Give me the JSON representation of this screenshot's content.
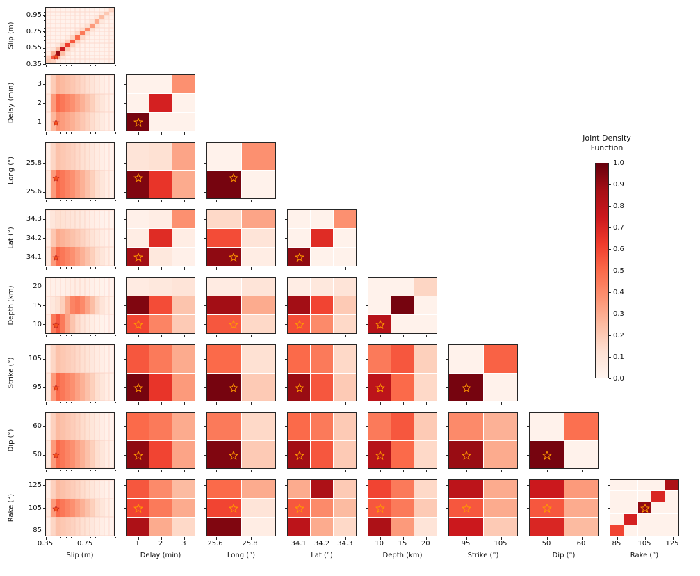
{
  "figure": {
    "background": "#ffffff",
    "colorbar": {
      "title_line1": "Joint Density",
      "title_line2": "Function",
      "tick_labels": [
        "1.0",
        "0.9",
        "0.8",
        "0.7",
        "0.6",
        "0.5",
        "0.4",
        "0.3",
        "0.2",
        "0.1",
        "0.0"
      ]
    }
  },
  "chart_data": {
    "type": "heatmap",
    "subtype": "corner-plot-pairwise-joint-density",
    "colorbar_title": "Joint Density Function",
    "colorbar_range": [
      0.0,
      1.0
    ],
    "colormap": {
      "name": "Reds",
      "stops": [
        [
          255,
          245,
          240
        ],
        [
          254,
          224,
          210
        ],
        [
          252,
          187,
          161
        ],
        [
          252,
          146,
          114
        ],
        [
          251,
          106,
          74
        ],
        [
          239,
          59,
          44
        ],
        [
          203,
          24,
          29
        ],
        [
          165,
          15,
          21
        ],
        [
          103,
          0,
          13
        ]
      ]
    },
    "marker": {
      "shape": "star",
      "fill": "#f4511e",
      "edge": "#b71c1c",
      "hollow_edge": "#ff9800"
    },
    "true_values": {
      "slip_m": 0.45,
      "delay_min": 1,
      "long_deg": 25.7,
      "lat_deg": 34.1,
      "depth_km": 10,
      "strike_deg": 95,
      "dip_deg": 50,
      "rake_deg": 105
    },
    "variables": [
      {
        "short": "slip",
        "label": "Slip (m)",
        "nbins": 14,
        "star_f": 0.143,
        "ticks": [
          [
            "0.35",
            0.0
          ],
          [
            "0.55",
            0.286
          ],
          [
            "0.75",
            0.571
          ],
          [
            "0.95",
            0.857
          ]
        ],
        "xticks": [
          [
            "0.35",
            0.0
          ],
          [
            "0.75",
            0.571
          ]
        ]
      },
      {
        "short": "delay",
        "label": "Delay (min)",
        "nbins": 3,
        "star_f": 0.167,
        "ticks": [
          [
            "1",
            0.167
          ],
          [
            "2",
            0.5
          ],
          [
            "3",
            0.833
          ]
        ]
      },
      {
        "short": "long",
        "label": "Long (°)",
        "nbins": 2,
        "star_f": 0.375,
        "ticks": [
          [
            "25.6",
            0.125
          ],
          [
            "25.8",
            0.625
          ]
        ]
      },
      {
        "short": "lat",
        "label": "Lat (°)",
        "nbins": 3,
        "star_f": 0.167,
        "ticks": [
          [
            "34.1",
            0.167
          ],
          [
            "34.2",
            0.5
          ],
          [
            "34.3",
            0.833
          ]
        ]
      },
      {
        "short": "depth",
        "label": "Depth (km)",
        "nbins": 3,
        "star_f": 0.167,
        "ticks": [
          [
            "10",
            0.167
          ],
          [
            "15",
            0.5
          ],
          [
            "20",
            0.833
          ]
        ]
      },
      {
        "short": "strike",
        "label": "Strike (°)",
        "nbins": 2,
        "star_f": 0.25,
        "ticks": [
          [
            "95",
            0.25
          ],
          [
            "105",
            0.75
          ]
        ]
      },
      {
        "short": "dip",
        "label": "Dip (°)",
        "nbins": 2,
        "star_f": 0.25,
        "ticks": [
          [
            "50",
            0.25
          ],
          [
            "60",
            0.75
          ]
        ]
      },
      {
        "short": "rake",
        "label": "Rake (°)",
        "nbins": 5,
        "star_f": 0.5,
        "ticks": [
          [
            "85",
            0.1
          ],
          [
            "105",
            0.5
          ],
          [
            "125",
            0.9
          ]
        ]
      }
    ],
    "slip_x_profile": [
      0.08,
      0.35,
      0.5,
      0.46,
      0.42,
      0.38,
      0.33,
      0.28,
      0.23,
      0.18,
      0.13,
      0.09,
      0.05,
      0.02
    ],
    "panels": [
      {
        "r": 0,
        "c": 0,
        "kind": "diag",
        "name": "slip-vs-slip",
        "profile": [
          0.2,
          0.55,
          0.9,
          0.75,
          0.62,
          0.55,
          0.5,
          0.45,
          0.4,
          0.35,
          0.3,
          0.25,
          0.2,
          0.15
        ]
      },
      {
        "r": 1,
        "c": 0,
        "kind": "smear",
        "name": "delay-vs-slip",
        "y_weights": [
          0.55,
          1.0,
          0.75
        ]
      },
      {
        "r": 1,
        "c": 1,
        "kind": "grid",
        "name": "delay-vs-delay",
        "grid": [
          [
            0.02,
            0.02,
            0.38
          ],
          [
            0.02,
            0.72,
            0.02
          ],
          [
            0.97,
            0.02,
            0.02
          ]
        ]
      },
      {
        "r": 2,
        "c": 0,
        "kind": "smear",
        "name": "long-vs-slip",
        "y_weights": [
          0.45,
          1.0
        ]
      },
      {
        "r": 2,
        "c": 1,
        "kind": "grid",
        "name": "long-vs-delay",
        "grid": [
          [
            0.1,
            0.12,
            0.32
          ],
          [
            0.95,
            0.65,
            0.3
          ]
        ]
      },
      {
        "r": 2,
        "c": 2,
        "kind": "grid",
        "name": "long-vs-long",
        "grid": [
          [
            0.02,
            0.38
          ],
          [
            0.97,
            0.02
          ]
        ]
      },
      {
        "r": 3,
        "c": 0,
        "kind": "smear",
        "name": "lat-vs-slip",
        "y_weights": [
          0.25,
          0.6,
          1.0
        ]
      },
      {
        "r": 3,
        "c": 1,
        "kind": "grid",
        "name": "lat-vs-delay",
        "grid": [
          [
            0.03,
            0.05,
            0.38
          ],
          [
            0.05,
            0.68,
            0.05
          ],
          [
            0.88,
            0.08,
            0.03
          ]
        ]
      },
      {
        "r": 3,
        "c": 2,
        "kind": "grid",
        "name": "lat-vs-long",
        "grid": [
          [
            0.15,
            0.32
          ],
          [
            0.58,
            0.1
          ],
          [
            0.92,
            0.05
          ]
        ]
      },
      {
        "r": 3,
        "c": 3,
        "kind": "grid",
        "name": "lat-vs-lat",
        "grid": [
          [
            0.02,
            0.02,
            0.38
          ],
          [
            0.02,
            0.68,
            0.02
          ],
          [
            0.92,
            0.02,
            0.02
          ]
        ]
      },
      {
        "r": 4,
        "c": 0,
        "kind": "grid",
        "name": "depth-vs-slip",
        "grid": [
          [
            0.02,
            0.03,
            0.03,
            0.03,
            0.04,
            0.05,
            0.05,
            0.05,
            0.04,
            0.03,
            0.02,
            0.02,
            0.01,
            0.01
          ],
          [
            0.03,
            0.08,
            0.12,
            0.18,
            0.3,
            0.42,
            0.45,
            0.4,
            0.32,
            0.24,
            0.16,
            0.1,
            0.05,
            0.02
          ],
          [
            0.06,
            0.45,
            0.55,
            0.45,
            0.32,
            0.22,
            0.15,
            0.1,
            0.07,
            0.05,
            0.03,
            0.02,
            0.01,
            0.01
          ]
        ]
      },
      {
        "r": 4,
        "c": 1,
        "kind": "grid",
        "name": "depth-vs-delay",
        "grid": [
          [
            0.06,
            0.08,
            0.1
          ],
          [
            0.95,
            0.58,
            0.22
          ],
          [
            0.6,
            0.42,
            0.2
          ]
        ]
      },
      {
        "r": 4,
        "c": 2,
        "kind": "grid",
        "name": "depth-vs-long",
        "grid": [
          [
            0.06,
            0.1
          ],
          [
            0.88,
            0.3
          ],
          [
            0.55,
            0.15
          ]
        ]
      },
      {
        "r": 4,
        "c": 3,
        "kind": "grid",
        "name": "depth-vs-lat",
        "grid": [
          [
            0.05,
            0.08,
            0.1
          ],
          [
            0.88,
            0.6,
            0.2
          ],
          [
            0.58,
            0.4,
            0.15
          ]
        ]
      },
      {
        "r": 4,
        "c": 4,
        "kind": "grid",
        "name": "depth-vs-depth",
        "grid": [
          [
            0.02,
            0.02,
            0.16
          ],
          [
            0.02,
            0.97,
            0.02
          ],
          [
            0.82,
            0.02,
            0.02
          ]
        ]
      },
      {
        "r": 5,
        "c": 0,
        "kind": "smear",
        "name": "strike-vs-slip",
        "y_weights": [
          0.45,
          1.0
        ]
      },
      {
        "r": 5,
        "c": 1,
        "kind": "grid",
        "name": "strike-vs-delay",
        "grid": [
          [
            0.55,
            0.45,
            0.3
          ],
          [
            0.97,
            0.65,
            0.35
          ]
        ]
      },
      {
        "r": 5,
        "c": 2,
        "kind": "grid",
        "name": "strike-vs-long",
        "grid": [
          [
            0.5,
            0.12
          ],
          [
            0.97,
            0.2
          ]
        ]
      },
      {
        "r": 5,
        "c": 3,
        "kind": "grid",
        "name": "strike-vs-lat",
        "grid": [
          [
            0.5,
            0.45,
            0.15
          ],
          [
            0.9,
            0.55,
            0.2
          ]
        ]
      },
      {
        "r": 5,
        "c": 4,
        "kind": "grid",
        "name": "strike-vs-depth",
        "grid": [
          [
            0.45,
            0.55,
            0.18
          ],
          [
            0.8,
            0.5,
            0.15
          ]
        ]
      },
      {
        "r": 5,
        "c": 5,
        "kind": "grid",
        "name": "strike-vs-strike",
        "grid": [
          [
            0.02,
            0.52
          ],
          [
            0.97,
            0.02
          ]
        ]
      },
      {
        "r": 6,
        "c": 0,
        "kind": "smear",
        "name": "dip-vs-slip",
        "y_weights": [
          0.5,
          1.0
        ]
      },
      {
        "r": 6,
        "c": 1,
        "kind": "grid",
        "name": "dip-vs-delay",
        "grid": [
          [
            0.5,
            0.45,
            0.3
          ],
          [
            0.92,
            0.6,
            0.32
          ]
        ]
      },
      {
        "r": 6,
        "c": 2,
        "kind": "grid",
        "name": "dip-vs-long",
        "grid": [
          [
            0.45,
            0.15
          ],
          [
            0.95,
            0.2
          ]
        ]
      },
      {
        "r": 6,
        "c": 3,
        "kind": "grid",
        "name": "dip-vs-lat",
        "grid": [
          [
            0.5,
            0.45,
            0.2
          ],
          [
            0.88,
            0.55,
            0.2
          ]
        ]
      },
      {
        "r": 6,
        "c": 4,
        "kind": "grid",
        "name": "dip-vs-depth",
        "grid": [
          [
            0.45,
            0.55,
            0.2
          ],
          [
            0.82,
            0.5,
            0.15
          ]
        ]
      },
      {
        "r": 6,
        "c": 5,
        "kind": "grid",
        "name": "dip-vs-strike",
        "grid": [
          [
            0.4,
            0.28
          ],
          [
            0.9,
            0.3
          ]
        ]
      },
      {
        "r": 6,
        "c": 6,
        "kind": "grid",
        "name": "dip-vs-dip",
        "grid": [
          [
            0.02,
            0.48
          ],
          [
            0.97,
            0.02
          ]
        ]
      },
      {
        "r": 7,
        "c": 0,
        "kind": "smear",
        "name": "rake-vs-slip",
        "y_weights": [
          0.5,
          1.0,
          0.45
        ]
      },
      {
        "r": 7,
        "c": 1,
        "kind": "grid",
        "name": "rake-vs-delay",
        "grid": [
          [
            0.55,
            0.4,
            0.25
          ],
          [
            0.6,
            0.45,
            0.3
          ],
          [
            0.85,
            0.3,
            0.15
          ]
        ]
      },
      {
        "r": 7,
        "c": 2,
        "kind": "grid",
        "name": "rake-vs-long",
        "grid": [
          [
            0.5,
            0.3
          ],
          [
            0.6,
            0.1
          ],
          [
            0.95,
            0.05
          ]
        ]
      },
      {
        "r": 7,
        "c": 3,
        "kind": "grid",
        "name": "rake-vs-lat",
        "grid": [
          [
            0.3,
            0.85,
            0.2
          ],
          [
            0.55,
            0.4,
            0.25
          ],
          [
            0.8,
            0.3,
            0.15
          ]
        ]
      },
      {
        "r": 7,
        "c": 4,
        "kind": "grid",
        "name": "rake-vs-depth",
        "grid": [
          [
            0.6,
            0.45,
            0.15
          ],
          [
            0.55,
            0.45,
            0.2
          ],
          [
            0.85,
            0.35,
            0.1
          ]
        ]
      },
      {
        "r": 7,
        "c": 5,
        "kind": "grid",
        "name": "rake-vs-strike",
        "grid": [
          [
            0.8,
            0.3
          ],
          [
            0.55,
            0.3
          ],
          [
            0.75,
            0.2
          ]
        ]
      },
      {
        "r": 7,
        "c": 6,
        "kind": "grid",
        "name": "rake-vs-dip",
        "grid": [
          [
            0.75,
            0.35
          ],
          [
            0.55,
            0.3
          ],
          [
            0.7,
            0.25
          ]
        ]
      },
      {
        "r": 7,
        "c": 7,
        "kind": "grid",
        "name": "rake-vs-rake",
        "grid": [
          [
            0.02,
            0.02,
            0.02,
            0.02,
            0.85
          ],
          [
            0.02,
            0.02,
            0.02,
            0.7,
            0.02
          ],
          [
            0.02,
            0.02,
            0.92,
            0.02,
            0.02
          ],
          [
            0.02,
            0.72,
            0.02,
            0.02,
            0.02
          ],
          [
            0.6,
            0.02,
            0.02,
            0.02,
            0.02
          ]
        ]
      }
    ]
  }
}
